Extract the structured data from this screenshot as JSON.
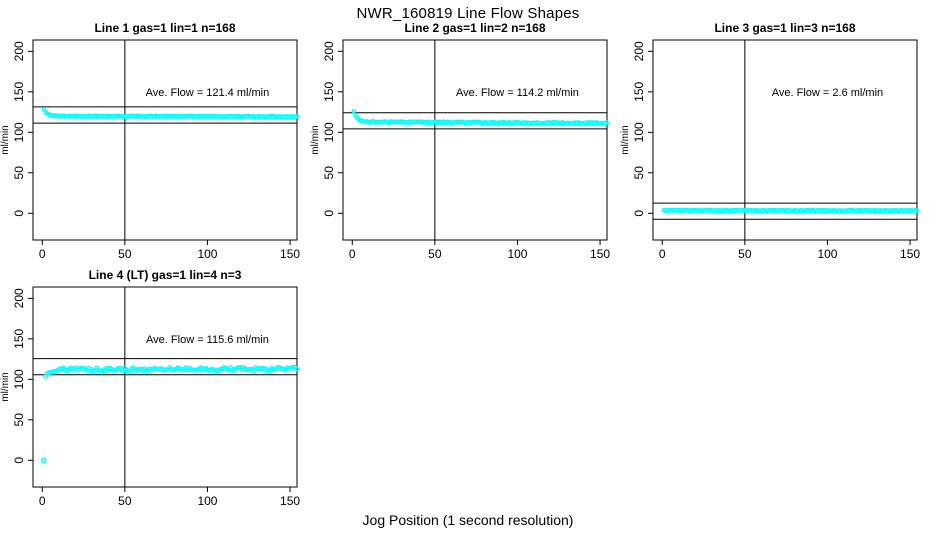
{
  "title": "NWR_160819  Line Flow Shapes",
  "xlabel": "Jog Position (1 second resolution)",
  "colors": {
    "points": "#00FFFF",
    "axis": "#000000",
    "background": "#FFFFFF"
  },
  "chart_data": {
    "type": "scatter",
    "title": "NWR_160819  Line Flow Shapes",
    "xlabel": "Jog Position (1 second resolution)",
    "ylabel": "ml/min",
    "x_ticks": [
      0,
      50,
      100,
      150
    ],
    "y_ticks": [
      0,
      50,
      100,
      150,
      200
    ],
    "xlim": [
      -5.6,
      154.2
    ],
    "ylim": [
      -33,
      214
    ],
    "vline_x": 50,
    "grid": false,
    "panels": [
      {
        "title": "Line 1 gas=1 lin=1 n=168",
        "annotation": "Ave. Flow =  121.4  ml/min",
        "ave_flow": 121.4,
        "n": 168,
        "ref_lines": [
          131.4,
          111.4
        ],
        "segments": [
          {
            "x0": 1,
            "x1": 8,
            "y0": 128,
            "y1": 120.2,
            "tau": 2,
            "jitter": 0.3
          },
          {
            "x0": 9,
            "x1": 154,
            "y0": 120,
            "y1": 119.4,
            "jitter": 0.5
          }
        ],
        "outliers": []
      },
      {
        "title": "Line 2 gas=1 lin=2 n=168",
        "annotation": "Ave. Flow =  114.2  ml/min",
        "ave_flow": 114.2,
        "n": 168,
        "ref_lines": [
          124.2,
          104.2
        ],
        "segments": [
          {
            "x0": 1,
            "x1": 8,
            "y0": 125.5,
            "y1": 113,
            "tau": 2,
            "jitter": 0.3
          },
          {
            "x0": 9,
            "x1": 154,
            "y0": 112.8,
            "y1": 111.3,
            "jitter": 0.7
          }
        ],
        "outliers": []
      },
      {
        "title": "Line 3 gas=1 lin=3 n=168",
        "annotation": "Ave. Flow =  2.6  ml/min",
        "ave_flow": 2.6,
        "n": 168,
        "ref_lines": [
          12.6,
          -7.4
        ],
        "segments": [
          {
            "x0": 1,
            "x1": 154,
            "y0": 3.6,
            "y1": 3.2,
            "jitter": 0.5
          }
        ],
        "outliers": []
      },
      {
        "title": "Line 4 (LT) gas=1 lin=4 n=3",
        "annotation": "Ave. Flow =  115.6  ml/min",
        "ave_flow": 115.6,
        "n": 3,
        "ref_lines": [
          125.6,
          105.6
        ],
        "segments": [
          {
            "x0": 2,
            "x1": 9,
            "y0": 104.5,
            "y1": 111,
            "tau": 3,
            "jitter": 1.2
          },
          {
            "x0": 10,
            "x1": 154,
            "y0": 112,
            "y1": 113,
            "jitter": 2.2
          }
        ],
        "outliers": [
          [
            1,
            0
          ]
        ]
      }
    ]
  }
}
